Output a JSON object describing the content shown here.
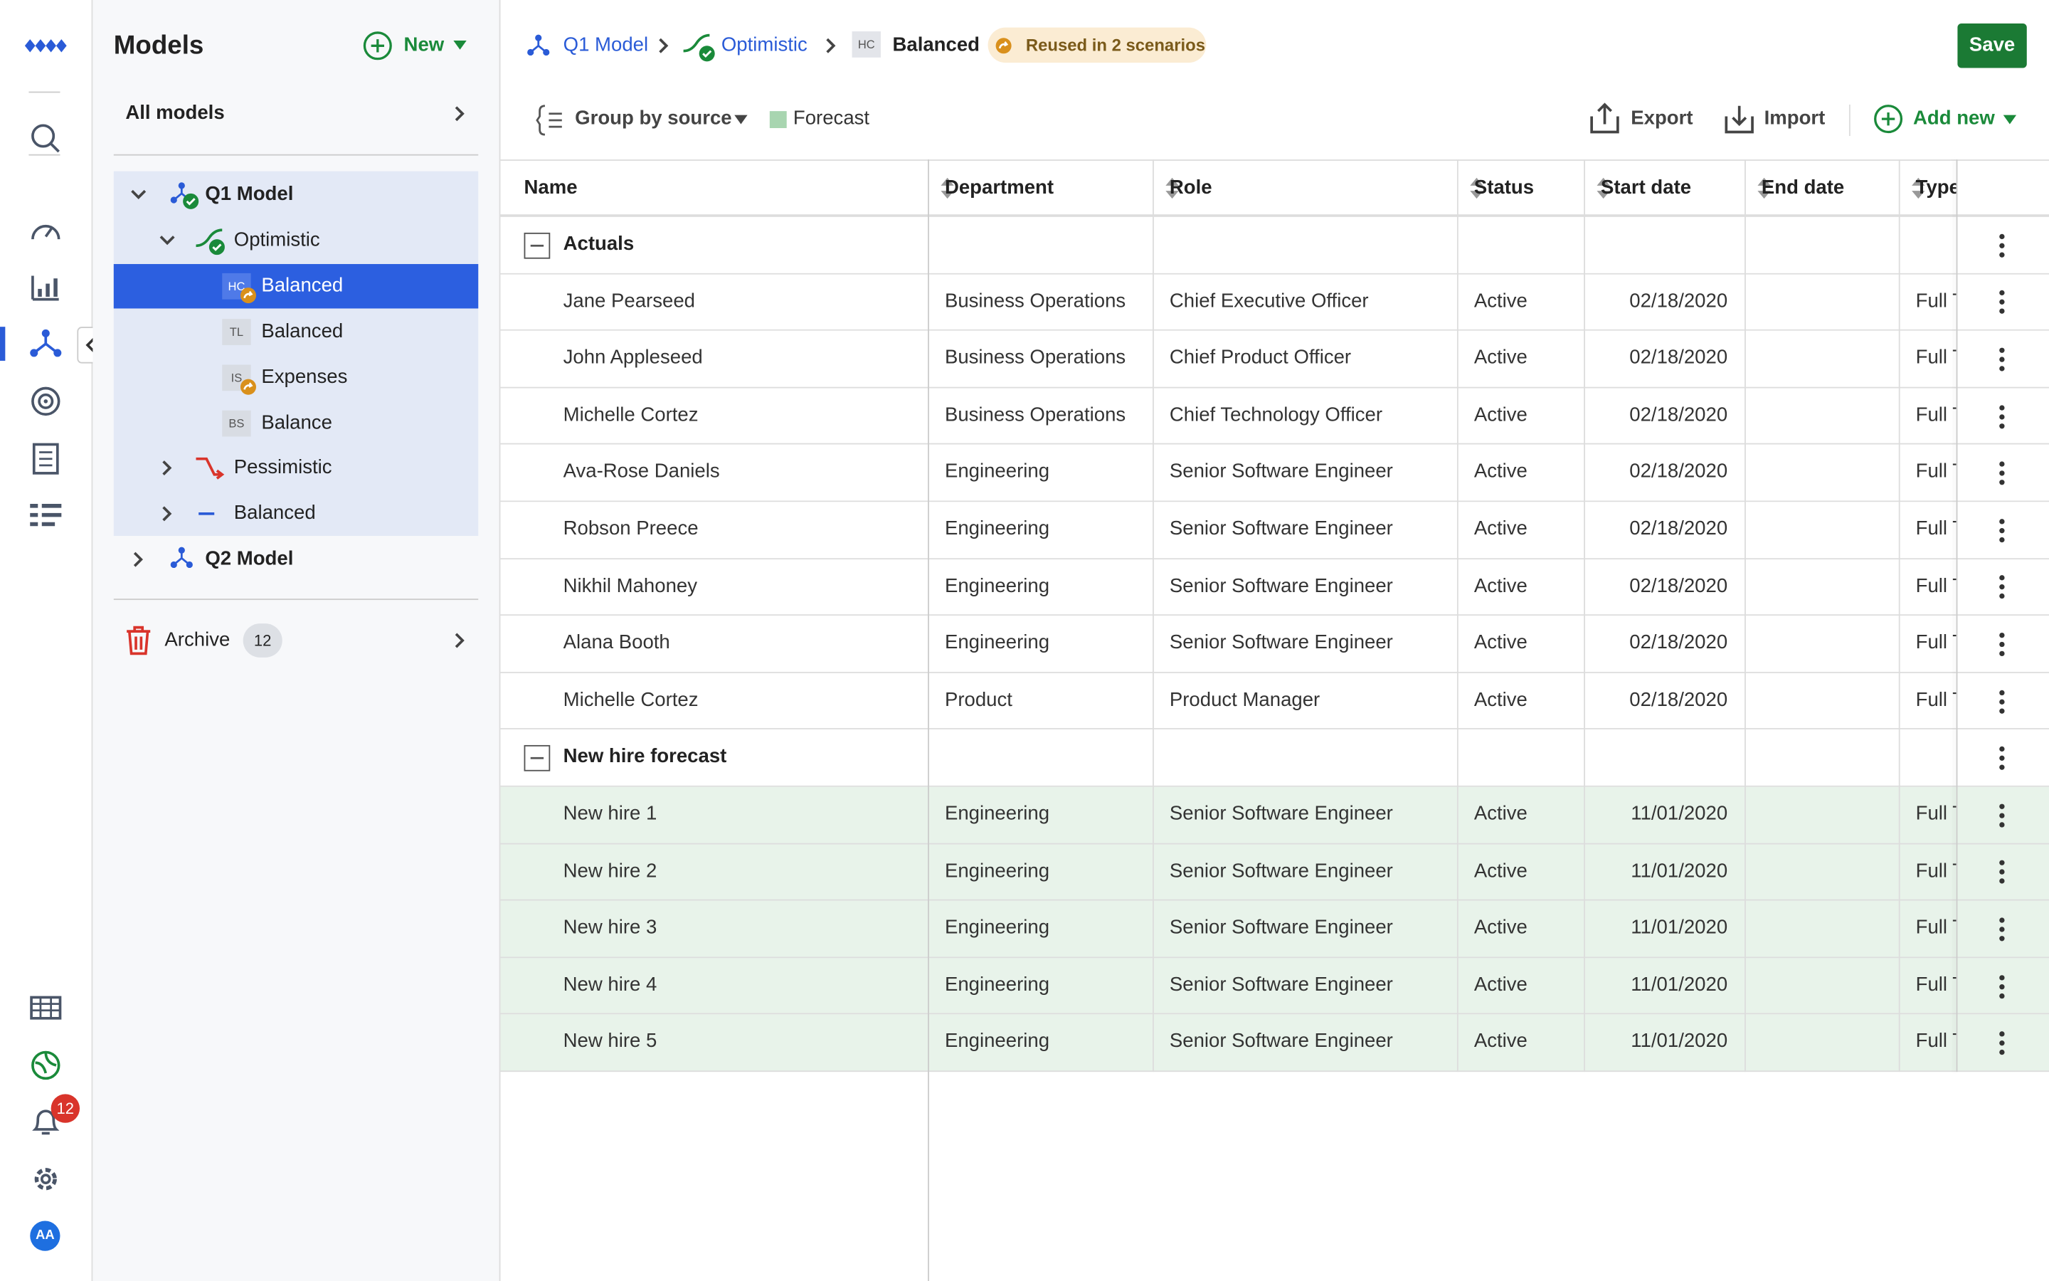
{
  "rail": {
    "notification_count": "12",
    "avatar": "AA"
  },
  "sidebar": {
    "title": "Models",
    "new_button": "New",
    "all_models": "All models",
    "tree": [
      {
        "label": "Q1 Model",
        "level": 0,
        "expanded": true,
        "icon": "model-check",
        "bold": true
      },
      {
        "label": "Optimistic",
        "level": 1,
        "expanded": true,
        "icon": "scenario-check"
      },
      {
        "label": "Balanced",
        "level": 2,
        "badge": "HC",
        "reused": true,
        "selected": true
      },
      {
        "label": "Balanced",
        "level": 2,
        "badge": "TL"
      },
      {
        "label": "Expenses",
        "level": 2,
        "badge": "IS",
        "reused": true
      },
      {
        "label": "Balance",
        "level": 2,
        "badge": "BS"
      },
      {
        "label": "Pessimistic",
        "level": 1,
        "expanded": false,
        "icon": "scenario-down"
      },
      {
        "label": "Balanced",
        "level": 1,
        "expanded": false,
        "icon": "scenario-flat"
      },
      {
        "label": "Q2 Model",
        "level": 0,
        "expanded": false,
        "icon": "model",
        "bold": true
      }
    ],
    "archive": {
      "label": "Archive",
      "count": "12"
    }
  },
  "breadcrumb": {
    "model": "Q1 Model",
    "scenario": "Optimistic",
    "badge": "HC",
    "current": "Balanced",
    "reuse": "Reused in 2 scenarios",
    "save": "Save"
  },
  "toolbar": {
    "group_by": "Group by source",
    "legend": "Forecast",
    "export": "Export",
    "import": "Import",
    "add_new": "Add new"
  },
  "table": {
    "columns": [
      "Name",
      "Department",
      "Role",
      "Status",
      "Start date",
      "End date",
      "Type"
    ],
    "groups": [
      {
        "title": "Actuals",
        "forecast": false,
        "rows": [
          {
            "name": "Jane Pearseed",
            "department": "Business Operations",
            "role": "Chief Executive Officer",
            "status": "Active",
            "start_date": "02/18/2020",
            "type": "Full Time"
          },
          {
            "name": "John Appleseed",
            "department": "Business Operations",
            "role": "Chief Product Officer",
            "status": "Active",
            "start_date": "02/18/2020",
            "type": "Full Time"
          },
          {
            "name": "Michelle Cortez",
            "department": "Business Operations",
            "role": "Chief Technology Officer",
            "status": "Active",
            "start_date": "02/18/2020",
            "type": "Full Time"
          },
          {
            "name": "Ava-Rose Daniels",
            "department": "Engineering",
            "role": "Senior Software Engineer",
            "status": "Active",
            "start_date": "02/18/2020",
            "type": "Full Time"
          },
          {
            "name": "Robson Preece",
            "department": "Engineering",
            "role": "Senior Software Engineer",
            "status": "Active",
            "start_date": "02/18/2020",
            "type": "Full Time"
          },
          {
            "name": "Nikhil Mahoney",
            "department": "Engineering",
            "role": "Senior Software Engineer",
            "status": "Active",
            "start_date": "02/18/2020",
            "type": "Full Time"
          },
          {
            "name": "Alana Booth",
            "department": "Engineering",
            "role": "Senior Software Engineer",
            "status": "Active",
            "start_date": "02/18/2020",
            "type": "Full Time"
          },
          {
            "name": "Michelle Cortez",
            "department": "Product",
            "role": "Product Manager",
            "status": "Active",
            "start_date": "02/18/2020",
            "type": "Full Time"
          }
        ]
      },
      {
        "title": "New hire forecast",
        "forecast": true,
        "rows": [
          {
            "name": "New hire 1",
            "department": "Engineering",
            "role": "Senior Software Engineer",
            "status": "Active",
            "start_date": "11/01/2020",
            "type": "Full Time"
          },
          {
            "name": "New hire 2",
            "department": "Engineering",
            "role": "Senior Software Engineer",
            "status": "Active",
            "start_date": "11/01/2020",
            "type": "Full Time"
          },
          {
            "name": "New hire 3",
            "department": "Engineering",
            "role": "Senior Software Engineer",
            "status": "Active",
            "start_date": "11/01/2020",
            "type": "Full Time"
          },
          {
            "name": "New hire 4",
            "department": "Engineering",
            "role": "Senior Software Engineer",
            "status": "Active",
            "start_date": "11/01/2020",
            "type": "Full Time"
          },
          {
            "name": "New hire 5",
            "department": "Engineering",
            "role": "Senior Software Engineer",
            "status": "Active",
            "start_date": "11/01/2020",
            "type": "Full Time"
          }
        ]
      }
    ]
  }
}
